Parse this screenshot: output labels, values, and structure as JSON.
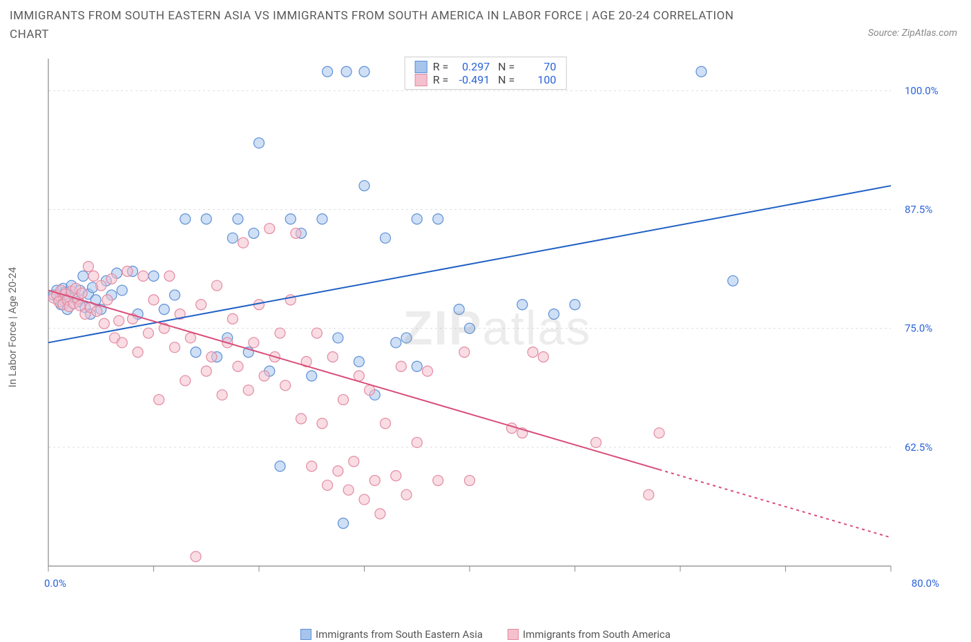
{
  "title": "IMMIGRANTS FROM SOUTH EASTERN ASIA VS IMMIGRANTS FROM SOUTH AMERICA IN LABOR FORCE | AGE 20-24 CORRELATION CHART",
  "source_prefix": "Source: ",
  "source_name": "ZipAtlas.com",
  "ylabel": "In Labor Force | Age 20-24",
  "watermark_a": "ZIP",
  "watermark_b": "atlas",
  "chart": {
    "type": "scatter",
    "x_domain": [
      0,
      80
    ],
    "y_domain": [
      50,
      103
    ],
    "x_ticks": [
      0,
      10,
      20,
      30,
      40,
      50,
      60,
      70,
      80
    ],
    "x_tick_labels": {
      "0": "0.0%",
      "80": "80.0%"
    },
    "y_ticks": [
      62.5,
      75.0,
      87.5,
      100.0
    ],
    "y_tick_labels": [
      "62.5%",
      "75.0%",
      "87.5%",
      "100.0%"
    ],
    "grid_color": "#dddddd",
    "axis_color": "#888888",
    "tick_label_color": "#2962d9",
    "background": "#ffffff",
    "marker_radius": 7.5,
    "marker_opacity": 0.55,
    "series": [
      {
        "name": "Immigrants from South Eastern Asia",
        "color_fill": "#a7c4ec",
        "color_stroke": "#5b8fd6",
        "R": "0.297",
        "N": "70",
        "trend": {
          "x1": 0,
          "y1": 73.5,
          "x2": 80,
          "y2": 90.0,
          "solid_until_x": 80,
          "color": "#1f5fc4",
          "width": 2
        },
        "points": [
          [
            0.5,
            78.5
          ],
          [
            0.8,
            79
          ],
          [
            1.0,
            78
          ],
          [
            1.2,
            77.5
          ],
          [
            1.4,
            79.2
          ],
          [
            1.6,
            78.8
          ],
          [
            1.8,
            77
          ],
          [
            2.0,
            78.2
          ],
          [
            2.2,
            79.5
          ],
          [
            2.5,
            78.3
          ],
          [
            2.8,
            77.8
          ],
          [
            3.0,
            79
          ],
          [
            3.3,
            80.5
          ],
          [
            3.5,
            77.2
          ],
          [
            3.8,
            78.6
          ],
          [
            4.0,
            76.5
          ],
          [
            4.2,
            79.3
          ],
          [
            4.5,
            78
          ],
          [
            5.0,
            77
          ],
          [
            5.5,
            80
          ],
          [
            6.0,
            78.5
          ],
          [
            6.5,
            80.8
          ],
          [
            7.0,
            79
          ],
          [
            8.0,
            81
          ],
          [
            8.5,
            76.5
          ],
          [
            10,
            80.5
          ],
          [
            11,
            77
          ],
          [
            12,
            78.5
          ],
          [
            13,
            86.5
          ],
          [
            14,
            72.5
          ],
          [
            15,
            86.5
          ],
          [
            16,
            72
          ],
          [
            17,
            74
          ],
          [
            17.5,
            84.5
          ],
          [
            18,
            86.5
          ],
          [
            19,
            72.5
          ],
          [
            19.5,
            85
          ],
          [
            20,
            94.5
          ],
          [
            21,
            70.5
          ],
          [
            22,
            60.5
          ],
          [
            23,
            86.5
          ],
          [
            24,
            85
          ],
          [
            25,
            70
          ],
          [
            26,
            86.5
          ],
          [
            26.5,
            102
          ],
          [
            27.5,
            74
          ],
          [
            28,
            54.5
          ],
          [
            28.3,
            102
          ],
          [
            29.5,
            71.5
          ],
          [
            30,
            90
          ],
          [
            30,
            102
          ],
          [
            31,
            68
          ],
          [
            32,
            84.5
          ],
          [
            33,
            73.5
          ],
          [
            34,
            74
          ],
          [
            35,
            71
          ],
          [
            35,
            86.5
          ],
          [
            37,
            86.5
          ],
          [
            39,
            77
          ],
          [
            40,
            75
          ],
          [
            45,
            77.5
          ],
          [
            48,
            76.5
          ],
          [
            50,
            77.5
          ],
          [
            62,
            102
          ],
          [
            65,
            80
          ]
        ]
      },
      {
        "name": "Immigrants from South America",
        "color_fill": "#f4c0cd",
        "color_stroke": "#e28aa0",
        "R": "-0.491",
        "N": "100",
        "trend": {
          "x1": 0,
          "y1": 79.0,
          "x2": 80,
          "y2": 53.0,
          "solid_until_x": 58,
          "color": "#d94c78",
          "width": 2
        },
        "points": [
          [
            0.5,
            78.2
          ],
          [
            0.8,
            78.5
          ],
          [
            1.0,
            77.8
          ],
          [
            1.2,
            79
          ],
          [
            1.4,
            77.5
          ],
          [
            1.6,
            78.6
          ],
          [
            1.8,
            78
          ],
          [
            2.0,
            77.3
          ],
          [
            2.2,
            78.9
          ],
          [
            2.4,
            77.6
          ],
          [
            2.6,
            79.2
          ],
          [
            2.8,
            78.1
          ],
          [
            3.0,
            77.4
          ],
          [
            3.2,
            78.7
          ],
          [
            3.5,
            76.5
          ],
          [
            3.8,
            81.5
          ],
          [
            4.0,
            77.2
          ],
          [
            4.3,
            80.5
          ],
          [
            4.6,
            76.8
          ],
          [
            5.0,
            79.5
          ],
          [
            5.3,
            75.5
          ],
          [
            5.6,
            78
          ],
          [
            6.0,
            80.2
          ],
          [
            6.3,
            74.0
          ],
          [
            6.7,
            75.8
          ],
          [
            7.0,
            73.5
          ],
          [
            7.5,
            81
          ],
          [
            8.0,
            76
          ],
          [
            8.5,
            72.5
          ],
          [
            9.0,
            80.5
          ],
          [
            9.5,
            74.5
          ],
          [
            10,
            78
          ],
          [
            10.5,
            67.5
          ],
          [
            11,
            75
          ],
          [
            11.5,
            80.5
          ],
          [
            12,
            73
          ],
          [
            12.5,
            76.5
          ],
          [
            13,
            69.5
          ],
          [
            13.5,
            74
          ],
          [
            14,
            51
          ],
          [
            14.5,
            77.5
          ],
          [
            15,
            70.5
          ],
          [
            15.5,
            72
          ],
          [
            16,
            79.5
          ],
          [
            16.5,
            68
          ],
          [
            17,
            73.5
          ],
          [
            17.5,
            76
          ],
          [
            18,
            71
          ],
          [
            18.5,
            84
          ],
          [
            19,
            68.5
          ],
          [
            19.5,
            73.5
          ],
          [
            20,
            77.5
          ],
          [
            20.5,
            70
          ],
          [
            21,
            85.5
          ],
          [
            21.5,
            72
          ],
          [
            22,
            74.5
          ],
          [
            22.5,
            69
          ],
          [
            23,
            78
          ],
          [
            23.5,
            85
          ],
          [
            24,
            65.5
          ],
          [
            24.5,
            71.5
          ],
          [
            25,
            60.5
          ],
          [
            25.5,
            74.5
          ],
          [
            26,
            65
          ],
          [
            26.5,
            58.5
          ],
          [
            27,
            72
          ],
          [
            27.5,
            60
          ],
          [
            28,
            67.5
          ],
          [
            28.5,
            58
          ],
          [
            29,
            61
          ],
          [
            29.5,
            70
          ],
          [
            30,
            57
          ],
          [
            30.5,
            68.5
          ],
          [
            31,
            59
          ],
          [
            31.5,
            55.5
          ],
          [
            32,
            65
          ],
          [
            33,
            59.5
          ],
          [
            33.5,
            71
          ],
          [
            34,
            57.5
          ],
          [
            35,
            63
          ],
          [
            36,
            70.5
          ],
          [
            37,
            59
          ],
          [
            39.5,
            72.5
          ],
          [
            40,
            59
          ],
          [
            44,
            64.5
          ],
          [
            45,
            64
          ],
          [
            46,
            72.5
          ],
          [
            47,
            72
          ],
          [
            52,
            63
          ],
          [
            57,
            57.5
          ],
          [
            58,
            64
          ]
        ]
      }
    ]
  },
  "legend_bottom": [
    {
      "label": "Immigrants from South Eastern Asia",
      "fill": "#a7c4ec",
      "stroke": "#5b8fd6"
    },
    {
      "label": "Immigrants from South America",
      "fill": "#f4c0cd",
      "stroke": "#e28aa0"
    }
  ]
}
